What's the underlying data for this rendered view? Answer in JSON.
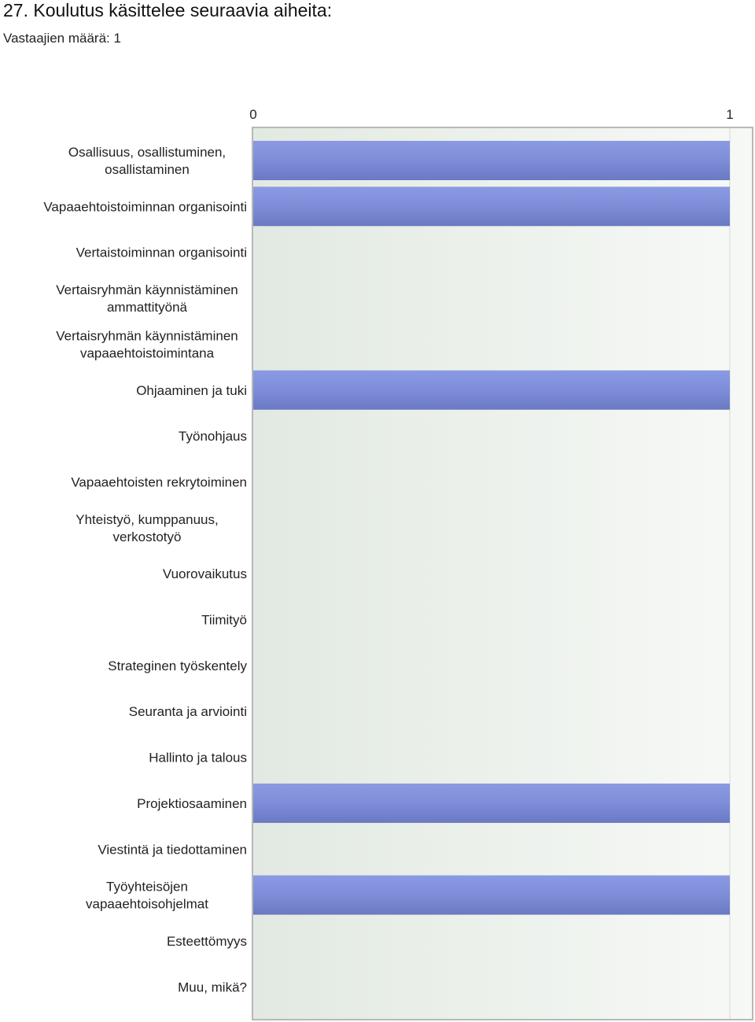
{
  "header": {
    "title": "27. Koulutus käsittelee seuraavia aiheita:",
    "respondents": "Vastaajien määrä: 1"
  },
  "chart_data": {
    "type": "bar",
    "orientation": "horizontal",
    "categories": [
      [
        "Osallisuus, osallistuminen,",
        "osallistaminen"
      ],
      [
        "Vapaaehtoistoiminnan organisointi"
      ],
      [
        "Vertaistoiminnan organisointi"
      ],
      [
        "Vertaisryhmän käynnistäminen",
        "ammattityönä"
      ],
      [
        "Vertaisryhmän käynnistäminen",
        "vapaaehtoistoimintana"
      ],
      [
        "Ohjaaminen ja tuki"
      ],
      [
        "Työnohjaus"
      ],
      [
        "Vapaaehtoisten rekrytoiminen"
      ],
      [
        "Yhteistyö, kumppanuus,",
        "verkostotyö"
      ],
      [
        "Vuorovaikutus"
      ],
      [
        "Tiimityö"
      ],
      [
        "Strateginen työskentely"
      ],
      [
        "Seuranta ja arviointi"
      ],
      [
        "Hallinto ja talous"
      ],
      [
        "Projektiosaaminen"
      ],
      [
        "Viestintä ja tiedottaminen"
      ],
      [
        "Työyhteisöjen",
        "vapaaehtoisohjelmat"
      ],
      [
        "Esteettömyys"
      ],
      [
        "Muu, mikä?"
      ]
    ],
    "values": [
      1,
      1,
      0,
      0,
      0,
      1,
      0,
      0,
      0,
      0,
      0,
      0,
      0,
      0,
      1,
      0,
      1,
      0,
      0
    ],
    "xlim": [
      0,
      1
    ],
    "xticks": [
      "0",
      "1"
    ],
    "grid": true,
    "colors": {
      "bar_top": "#8b9ae3",
      "bar_mid": "#7d8dd8",
      "bar_bottom": "#6a79c2",
      "plot_bg_left": "#e2e9e2",
      "plot_bg_right": "#f7f9f6",
      "frame": "#b8b8b8",
      "grid": "#d4d8d2"
    }
  }
}
